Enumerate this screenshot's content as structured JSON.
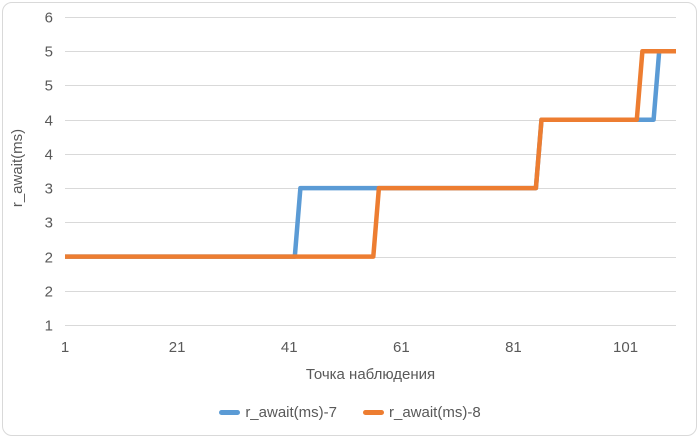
{
  "chart_data": {
    "type": "line",
    "subtype": "step-line",
    "title": "",
    "xlabel": "Точка наблюдения",
    "ylabel": "r_await(ms)",
    "grid": true,
    "legend_position": "bottom",
    "x_axis": {
      "min": 1,
      "max": 110,
      "ticks": [
        1,
        21,
        41,
        61,
        81,
        101
      ]
    },
    "y_axis": {
      "min": 1,
      "max": 5.5,
      "tick_step": 0.5,
      "ticks": [
        {
          "value": 1.0,
          "label": "1"
        },
        {
          "value": 1.5,
          "label": "2"
        },
        {
          "value": 2.0,
          "label": "2"
        },
        {
          "value": 2.5,
          "label": "3"
        },
        {
          "value": 3.0,
          "label": "3"
        },
        {
          "value": 3.5,
          "label": "4"
        },
        {
          "value": 4.0,
          "label": "4"
        },
        {
          "value": 4.5,
          "label": "5"
        },
        {
          "value": 5.0,
          "label": "5"
        },
        {
          "value": 5.5,
          "label": "6"
        }
      ]
    },
    "series": [
      {
        "name": "r_await(ms)-7",
        "color": "#5B9BD5",
        "steps": [
          {
            "from": 1,
            "to": 42,
            "value": 2
          },
          {
            "from": 43,
            "to": 85,
            "value": 3
          },
          {
            "from": 86,
            "to": 106,
            "value": 4
          },
          {
            "from": 107,
            "to": 110,
            "value": 5
          }
        ]
      },
      {
        "name": "r_await(ms)-8",
        "color": "#ED7D31",
        "steps": [
          {
            "from": 1,
            "to": 56,
            "value": 2
          },
          {
            "from": 57,
            "to": 85,
            "value": 3
          },
          {
            "from": 86,
            "to": 103,
            "value": 4
          },
          {
            "from": 104,
            "to": 110,
            "value": 5
          }
        ]
      }
    ],
    "colors": {
      "gridline": "#D9D9D9",
      "text": "#595959",
      "frame_border": "#D9D9D9",
      "background": "#FFFFFF"
    }
  }
}
